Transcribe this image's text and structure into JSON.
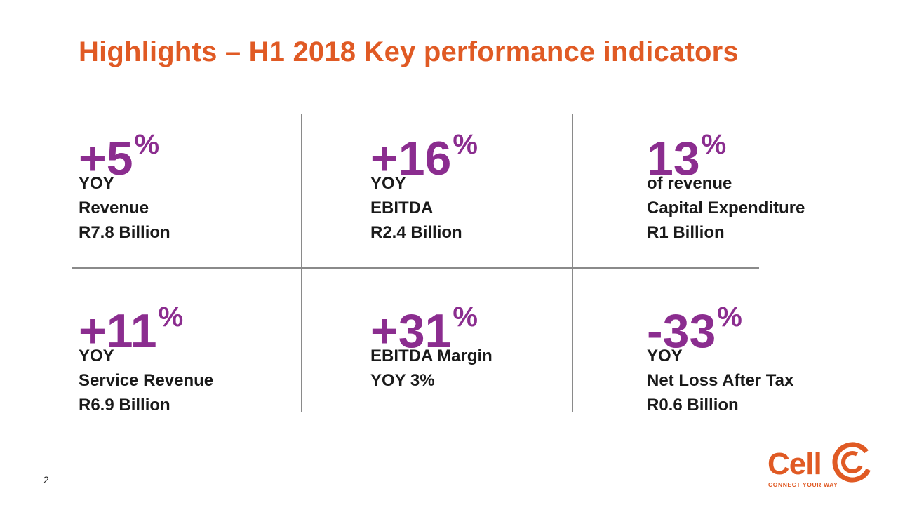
{
  "title": "Highlights – H1 2018 Key performance indicators",
  "page_number": "2",
  "colors": {
    "title": "#e05a24",
    "accent": "#8b2d8f",
    "text": "#1a1a1a",
    "divider": "#8a8a8a"
  },
  "kpis": [
    {
      "value": "+5",
      "unit": "%",
      "lines": [
        "YOY",
        "Revenue",
        "R7.8 Billion"
      ]
    },
    {
      "value": "+16",
      "unit": "%",
      "lines": [
        "YOY",
        "EBITDA",
        "R2.4 Billion"
      ]
    },
    {
      "value": "13",
      "unit": "%",
      "lines": [
        "of revenue",
        "Capital Expenditure",
        "R1 Billion"
      ]
    },
    {
      "value": "+11",
      "unit": "%",
      "lines": [
        "YOY",
        "Service Revenue",
        "R6.9 Billion"
      ]
    },
    {
      "value": "+31",
      "unit": "%",
      "lines": [
        "EBITDA Margin",
        "YOY 3%"
      ]
    },
    {
      "value": "-33",
      "unit": "%",
      "lines": [
        "YOY",
        "Net Loss After Tax",
        "R0.6 Billion"
      ]
    }
  ],
  "logo": {
    "name": "Cell C",
    "text": "Cell",
    "tagline": "CONNECT YOUR WAY"
  }
}
